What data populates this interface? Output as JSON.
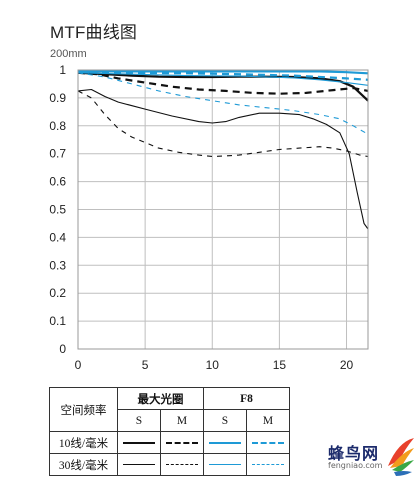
{
  "title": "MTF曲线图",
  "chart_data": {
    "type": "line",
    "subtitle": "200mm",
    "xlim": [
      0,
      21.6
    ],
    "ylim": [
      0,
      1
    ],
    "xticks": [
      0,
      5,
      10,
      15,
      20
    ],
    "yticks": [
      0,
      0.1,
      0.2,
      0.3,
      0.4,
      0.5,
      0.6,
      0.7,
      0.8,
      0.9,
      1
    ],
    "ytick_labels": [
      "0",
      "0.1",
      "0.2",
      "0.3",
      "0.4",
      "0.5",
      "0.6",
      "0.7",
      "0.8",
      "0.9",
      "1"
    ],
    "grid": true,
    "series": [
      {
        "name": "最大光圈 10线/毫米 S",
        "color": "#111111",
        "width": 2.2,
        "dash": "",
        "points": [
          [
            0,
            0.99
          ],
          [
            2,
            0.985
          ],
          [
            4,
            0.98
          ],
          [
            6,
            0.976
          ],
          [
            8,
            0.975
          ],
          [
            10,
            0.975
          ],
          [
            12,
            0.976
          ],
          [
            14,
            0.976
          ],
          [
            16,
            0.975
          ],
          [
            18,
            0.97
          ],
          [
            19.5,
            0.96
          ],
          [
            20.5,
            0.94
          ],
          [
            21.6,
            0.89
          ]
        ]
      },
      {
        "name": "最大光圈 10线/毫米 M",
        "color": "#111111",
        "width": 2.2,
        "dash": "7,5",
        "points": [
          [
            0,
            0.99
          ],
          [
            1.5,
            0.985
          ],
          [
            3,
            0.97
          ],
          [
            5,
            0.955
          ],
          [
            7,
            0.94
          ],
          [
            9,
            0.93
          ],
          [
            11,
            0.925
          ],
          [
            13,
            0.918
          ],
          [
            15,
            0.915
          ],
          [
            17,
            0.918
          ],
          [
            19,
            0.928
          ],
          [
            20.5,
            0.935
          ],
          [
            21.6,
            0.925
          ]
        ]
      },
      {
        "name": "F8 10线/毫米 S",
        "color": "#1e9ad6",
        "width": 2.2,
        "dash": "",
        "points": [
          [
            0,
            0.995
          ],
          [
            4,
            0.995
          ],
          [
            8,
            0.995
          ],
          [
            12,
            0.995
          ],
          [
            16,
            0.995
          ],
          [
            18,
            0.995
          ],
          [
            20,
            0.992
          ],
          [
            21.6,
            0.988
          ]
        ]
      },
      {
        "name": "F8 10线/毫米 M",
        "color": "#1e9ad6",
        "width": 2.2,
        "dash": "7,5",
        "points": [
          [
            0,
            0.993
          ],
          [
            4,
            0.99
          ],
          [
            8,
            0.988
          ],
          [
            12,
            0.985
          ],
          [
            16,
            0.98
          ],
          [
            18,
            0.975
          ],
          [
            20,
            0.97
          ],
          [
            21.6,
            0.965
          ]
        ]
      },
      {
        "name": "最大光圈 30线/毫米 S",
        "color": "#111111",
        "width": 1.1,
        "dash": "",
        "points": [
          [
            0,
            0.925
          ],
          [
            1,
            0.93
          ],
          [
            2,
            0.905
          ],
          [
            3,
            0.885
          ],
          [
            5,
            0.86
          ],
          [
            7,
            0.835
          ],
          [
            9,
            0.815
          ],
          [
            10,
            0.81
          ],
          [
            11,
            0.815
          ],
          [
            12,
            0.83
          ],
          [
            13.5,
            0.845
          ],
          [
            15,
            0.845
          ],
          [
            16.5,
            0.84
          ],
          [
            17.5,
            0.825
          ],
          [
            18.5,
            0.805
          ],
          [
            19.5,
            0.775
          ],
          [
            20.2,
            0.7
          ],
          [
            20.8,
            0.56
          ],
          [
            21.3,
            0.45
          ],
          [
            21.6,
            0.43
          ]
        ]
      },
      {
        "name": "最大光圈 30线/毫米 M",
        "color": "#111111",
        "width": 1.1,
        "dash": "5,5",
        "points": [
          [
            0,
            0.925
          ],
          [
            1,
            0.9
          ],
          [
            2,
            0.84
          ],
          [
            3,
            0.79
          ],
          [
            4,
            0.76
          ],
          [
            5,
            0.74
          ],
          [
            6,
            0.72
          ],
          [
            7.5,
            0.705
          ],
          [
            9,
            0.695
          ],
          [
            10,
            0.69
          ],
          [
            11,
            0.692
          ],
          [
            12,
            0.695
          ],
          [
            13.5,
            0.705
          ],
          [
            15,
            0.715
          ],
          [
            16.5,
            0.72
          ],
          [
            18,
            0.725
          ],
          [
            19,
            0.72
          ],
          [
            20,
            0.71
          ],
          [
            21,
            0.695
          ],
          [
            21.6,
            0.69
          ]
        ]
      },
      {
        "name": "F8 30线/毫米 S",
        "color": "#1e9ad6",
        "width": 1.1,
        "dash": "",
        "points": [
          [
            0,
            0.99
          ],
          [
            4,
            0.985
          ],
          [
            8,
            0.98
          ],
          [
            12,
            0.978
          ],
          [
            16,
            0.972
          ],
          [
            18,
            0.965
          ],
          [
            20,
            0.955
          ],
          [
            21.6,
            0.945
          ]
        ]
      },
      {
        "name": "F8 30线/毫米 M",
        "color": "#1e9ad6",
        "width": 1.1,
        "dash": "5,5",
        "points": [
          [
            0,
            0.99
          ],
          [
            2,
            0.975
          ],
          [
            4,
            0.95
          ],
          [
            6,
            0.925
          ],
          [
            8,
            0.905
          ],
          [
            10,
            0.89
          ],
          [
            12,
            0.875
          ],
          [
            14,
            0.865
          ],
          [
            16,
            0.855
          ],
          [
            18,
            0.84
          ],
          [
            19.5,
            0.825
          ],
          [
            20.5,
            0.8
          ],
          [
            21.6,
            0.77
          ]
        ]
      }
    ]
  },
  "legend": {
    "row_header": "空间频率",
    "groups": [
      "最大光圈",
      "F8"
    ],
    "subheaders": [
      "S",
      "M",
      "S",
      "M"
    ],
    "rows": [
      {
        "label": "10线/毫米",
        "styles": [
          {
            "color": "#111111",
            "width": 2.2,
            "style": "solid"
          },
          {
            "color": "#111111",
            "width": 2.2,
            "style": "dashed"
          },
          {
            "color": "#1e9ad6",
            "width": 2.2,
            "style": "solid"
          },
          {
            "color": "#1e9ad6",
            "width": 2.2,
            "style": "dashed"
          }
        ]
      },
      {
        "label": "30线/毫米",
        "styles": [
          {
            "color": "#111111",
            "width": 1.1,
            "style": "solid"
          },
          {
            "color": "#111111",
            "width": 1.1,
            "style": "dashed"
          },
          {
            "color": "#1e9ad6",
            "width": 1.1,
            "style": "solid"
          },
          {
            "color": "#1e9ad6",
            "width": 1.1,
            "style": "dashed"
          }
        ]
      }
    ]
  },
  "watermark": {
    "name": "蜂鸟网",
    "url": "fengniao.com"
  }
}
